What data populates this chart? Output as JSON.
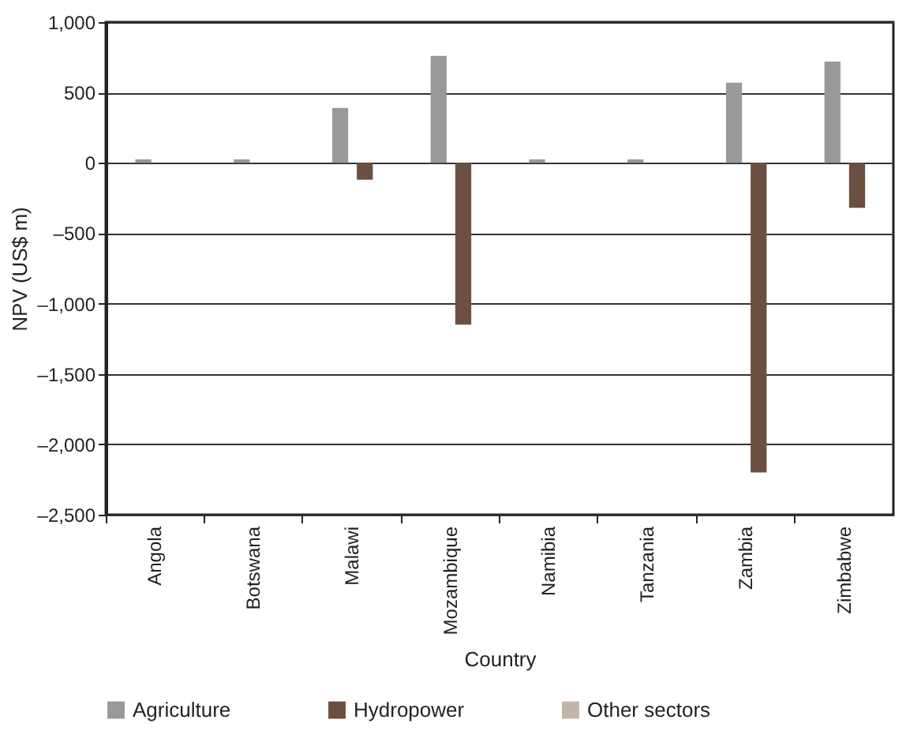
{
  "chart_data": {
    "type": "bar",
    "xlabel": "Country",
    "ylabel": "NPV (US$ m)",
    "categories": [
      "Angola",
      "Botswana",
      "Malawi",
      "Mozambique",
      "Namibia",
      "Tanzania",
      "Zambia",
      "Zimbabwe"
    ],
    "series": [
      {
        "name": "Agriculture",
        "color": "#999999",
        "values": [
          25,
          25,
          390,
          760,
          25,
          25,
          570,
          720
        ]
      },
      {
        "name": "Hydropower",
        "color": "#6b5040",
        "values": [
          0,
          0,
          -120,
          -1150,
          0,
          0,
          -2200,
          -320
        ]
      },
      {
        "name": "Other sectors",
        "color": "#c4b5ab",
        "values": [
          0,
          0,
          0,
          0,
          0,
          0,
          0,
          0
        ]
      }
    ],
    "ylim": [
      -2500,
      1000
    ],
    "yticks": [
      {
        "value": -2500,
        "label": "–2,500"
      },
      {
        "value": -2000,
        "label": "–2,000"
      },
      {
        "value": -1500,
        "label": "–1,500"
      },
      {
        "value": -1000,
        "label": "–1,000"
      },
      {
        "value": -500,
        "label": "–500"
      },
      0,
      500,
      {
        "value": 1000,
        "label": "1,000"
      }
    ],
    "grid": "y",
    "legend": "bottom"
  }
}
